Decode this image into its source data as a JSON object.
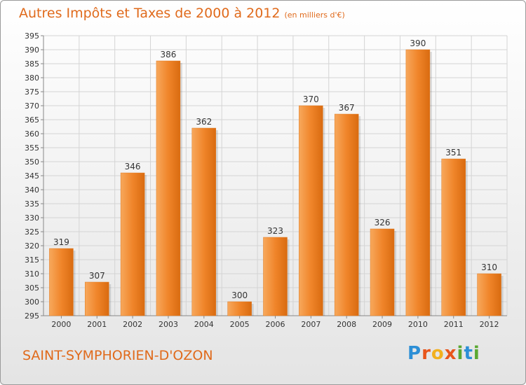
{
  "chart_data": {
    "type": "bar",
    "title": "Autres Impôts et Taxes de 2000 à 2012",
    "subtitle": "(en milliers d'€)",
    "categories": [
      "2000",
      "2001",
      "2002",
      "2003",
      "2004",
      "2005",
      "2006",
      "2007",
      "2008",
      "2009",
      "2010",
      "2011",
      "2012"
    ],
    "values": [
      319,
      307,
      346,
      386,
      362,
      300,
      323,
      370,
      367,
      326,
      390,
      351,
      310
    ],
    "ylim": [
      295,
      395
    ],
    "ytick_step": 5,
    "grid": true,
    "xlabel": "",
    "ylabel": "",
    "colors": {
      "bar": "#f0852a",
      "bar_light": "#f7a85c",
      "bar_dark": "#d96b10",
      "text": "#e06a1b"
    }
  },
  "commune": "SAINT-SYMPHORIEN-D'OZON",
  "brand": {
    "text": "Proxiti",
    "letters": [
      {
        "char": "P",
        "color": "#2c8fd6"
      },
      {
        "char": "r",
        "color": "#e8551b"
      },
      {
        "char": "o",
        "color": "#f2b01e"
      },
      {
        "char": "x",
        "color": "#e8551b"
      },
      {
        "char": "i",
        "color": "#5aa832"
      },
      {
        "char": "t",
        "color": "#2c8fd6"
      },
      {
        "char": "i",
        "color": "#5aa832"
      }
    ]
  }
}
